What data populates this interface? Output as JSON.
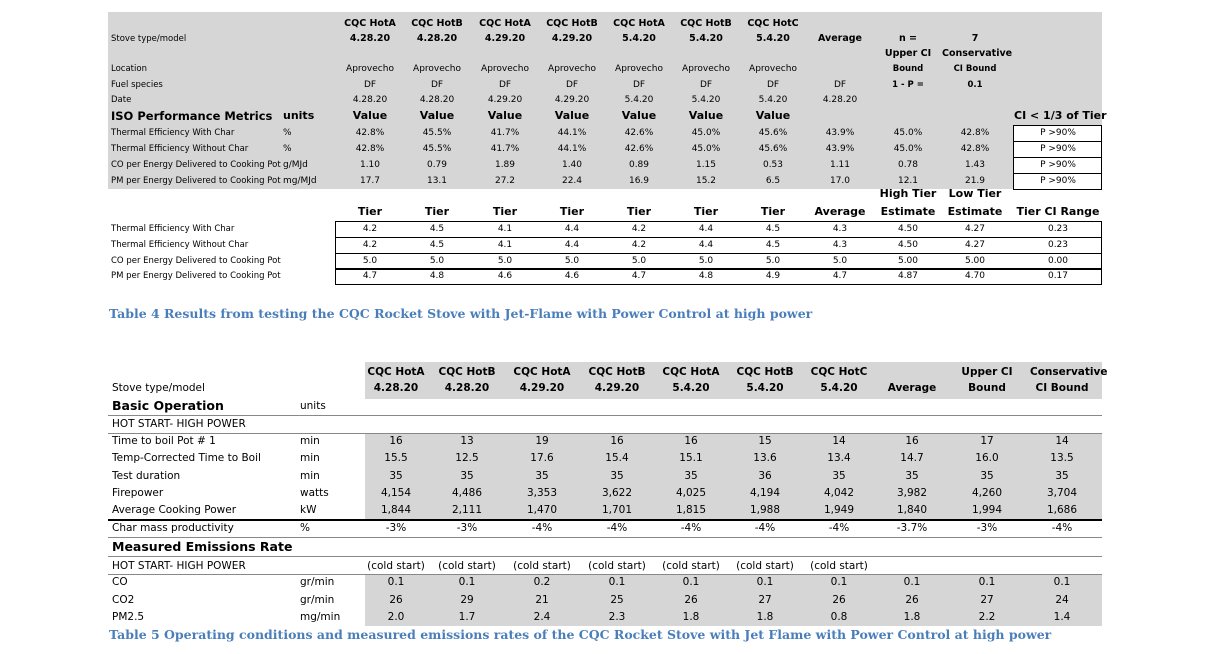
{
  "table1": {
    "rows": [
      [
        null,
        null,
        "CQC HotA",
        "CQC HotB",
        "CQC HotA",
        "CQC HotB",
        "CQC HotA",
        "CQC HotB",
        "CQC HotC",
        null,
        null,
        null,
        null
      ],
      [
        "Stove type/model",
        null,
        "4.28.20",
        "4.28.20",
        "4.29.20",
        "4.29.20",
        "5.4.20",
        "5.4.20",
        "5.4.20",
        "Average",
        "n =",
        "7",
        null
      ],
      [
        null,
        null,
        null,
        null,
        null,
        null,
        null,
        null,
        null,
        null,
        "Upper CI",
        "Conservative",
        null
      ],
      [
        "Location",
        null,
        "Aprovecho",
        "Aprovecho",
        "Aprovecho",
        "Aprovecho",
        "Aprovecho",
        "Aprovecho",
        "Aprovecho",
        null,
        "Bound",
        "CI Bound",
        null
      ],
      [
        "Fuel species",
        null,
        "DF",
        "DF",
        "DF",
        "DF",
        "DF",
        "DF",
        "DF",
        "DF",
        "1 - P =",
        "0.1",
        null
      ],
      [
        "Date",
        null,
        "4.28.20",
        "4.28.20",
        "4.29.20",
        "4.29.20",
        "5.4.20",
        "5.4.20",
        "5.4.20",
        "4.28.20",
        null,
        null,
        null
      ],
      [
        "ISO Performance Metrics",
        "units",
        "Value",
        "Value",
        "Value",
        "Value",
        "Value",
        "Value",
        "Value",
        null,
        null,
        null,
        "CI < 1/3 of Tier"
      ],
      [
        "Thermal Efficiency With Char",
        "%",
        "42.8%",
        "45.5%",
        "41.7%",
        "44.1%",
        "42.6%",
        "45.0%",
        "45.6%",
        "43.9%",
        "45.0%",
        "42.8%",
        "P >90%"
      ],
      [
        "Thermal Efficiency Without Char",
        "%",
        "42.8%",
        "45.5%",
        "41.7%",
        "44.1%",
        "42.6%",
        "45.0%",
        "45.6%",
        "43.9%",
        "45.0%",
        "42.8%",
        "P >90%"
      ],
      [
        "CO per Energy Delivered to Cooking Pot",
        "g/MJd",
        "1.10",
        "0.79",
        "1.89",
        "1.40",
        "0.89",
        "1.15",
        "0.53",
        "1.11",
        "0.78",
        "1.43",
        "P >90%"
      ],
      [
        "PM per Energy Delivered to Cooking Pot",
        "mg/MJd",
        "17.7",
        "13.1",
        "27.2",
        "22.4",
        "16.9",
        "15.2",
        "6.5",
        "17.0",
        "12.1",
        "21.9",
        "P >90%"
      ],
      [
        null,
        null,
        null,
        null,
        null,
        null,
        null,
        null,
        null,
        null,
        "High Tier",
        "Low Tier",
        null
      ],
      [
        null,
        null,
        "Tier",
        "Tier",
        "Tier",
        "Tier",
        "Tier",
        "Tier",
        "Tier",
        "Average",
        "Estimate",
        "Estimate",
        "Tier CI Range"
      ],
      [
        "Thermal Efficiency With Char",
        null,
        "4.2",
        "4.5",
        "4.1",
        "4.4",
        "4.2",
        "4.4",
        "4.5",
        "4.3",
        "4.50",
        "4.27",
        "0.23"
      ],
      [
        "Thermal Efficiency Without Char",
        null,
        "4.2",
        "4.5",
        "4.1",
        "4.4",
        "4.2",
        "4.4",
        "4.5",
        "4.3",
        "4.50",
        "4.27",
        "0.23"
      ],
      [
        "CO per Energy Delivered to Cooking Pot",
        null,
        "5.0",
        "5.0",
        "5.0",
        "5.0",
        "5.0",
        "5.0",
        "5.0",
        "5.0",
        "5.00",
        "5.00",
        "0.00"
      ],
      [
        "PM per Energy Delivered to Cooking Pot",
        null,
        "4.7",
        "4.8",
        "4.6",
        "4.6",
        "4.7",
        "4.8",
        "4.9",
        "4.7",
        "4.87",
        "4.70",
        "0.17"
      ]
    ],
    "caption": "Table 4 Results from testing the CQC Rocket Stove with Jet-Flame with Power Control at high power"
  },
  "table2": {
    "rows": [
      [
        null,
        null,
        "CQC HotA",
        "CQC HotB",
        "CQC HotA",
        "CQC HotB",
        "CQC HotA",
        "CQC HotB",
        "CQC HotC",
        null,
        "Upper CI",
        "Conservative"
      ],
      [
        "Stove type/model",
        null,
        "4.28.20",
        "4.28.20",
        "4.29.20",
        "4.29.20",
        "5.4.20",
        "5.4.20",
        "5.4.20",
        "Average",
        "Bound",
        "CI Bound"
      ],
      [
        "Basic Operation",
        "units",
        null,
        null,
        null,
        null,
        null,
        null,
        null,
        null,
        null,
        null
      ],
      [
        "HOT START- HIGH POWER",
        null,
        null,
        null,
        null,
        null,
        null,
        null,
        null,
        null,
        null,
        null
      ],
      [
        "Time to boil Pot # 1",
        "min",
        "16",
        "13",
        "19",
        "16",
        "16",
        "15",
        "14",
        "16",
        "17",
        "14"
      ],
      [
        "Temp-Corrected Time to Boil",
        "min",
        "15.5",
        "12.5",
        "17.6",
        "15.4",
        "15.1",
        "13.6",
        "13.4",
        "14.7",
        "16.0",
        "13.5"
      ],
      [
        "Test duration",
        "min",
        "35",
        "35",
        "35",
        "35",
        "35",
        "36",
        "35",
        "35",
        "35",
        "35"
      ],
      [
        "Firepower",
        "watts",
        "4,154",
        "4,486",
        "3,353",
        "3,622",
        "4,025",
        "4,194",
        "4,042",
        "3,982",
        "4,260",
        "3,704"
      ],
      [
        "Average Cooking Power",
        "kW",
        "1,844",
        "2,111",
        "1,470",
        "1,701",
        "1,815",
        "1,988",
        "1,949",
        "1,840",
        "1,994",
        "1,686"
      ],
      [
        "Char mass productivity",
        "%",
        "-3%",
        "-3%",
        "-4%",
        "-4%",
        "-4%",
        "-4%",
        "-4%",
        "-3.7%",
        "-3%",
        "-4%"
      ],
      [
        "Measured Emissions Rate",
        null,
        null,
        null,
        null,
        null,
        null,
        null,
        null,
        null,
        null,
        null
      ],
      [
        "HOT START- HIGH POWER",
        null,
        "(cold start)",
        "(cold start)",
        "(cold start)",
        "(cold start)",
        "(cold start)",
        "(cold start)",
        "(cold start)",
        null,
        null,
        null
      ],
      [
        "CO",
        "gr/min",
        "0.1",
        "0.1",
        "0.2",
        "0.1",
        "0.1",
        "0.1",
        "0.1",
        "0.1",
        "0.1",
        "0.1"
      ],
      [
        "CO2",
        "gr/min",
        "26",
        "29",
        "21",
        "25",
        "26",
        "27",
        "26",
        "26",
        "27",
        "24"
      ],
      [
        "PM2.5",
        "mg/min",
        "2.0",
        "1.7",
        "2.4",
        "2.3",
        "1.8",
        "1.8",
        "0.8",
        "1.8",
        "2.2",
        "1.4"
      ]
    ],
    "caption": "Table 5 Operating conditions and measured emissions rates of the CQC Rocket Stove with Jet Flame with Power Control at high power"
  }
}
